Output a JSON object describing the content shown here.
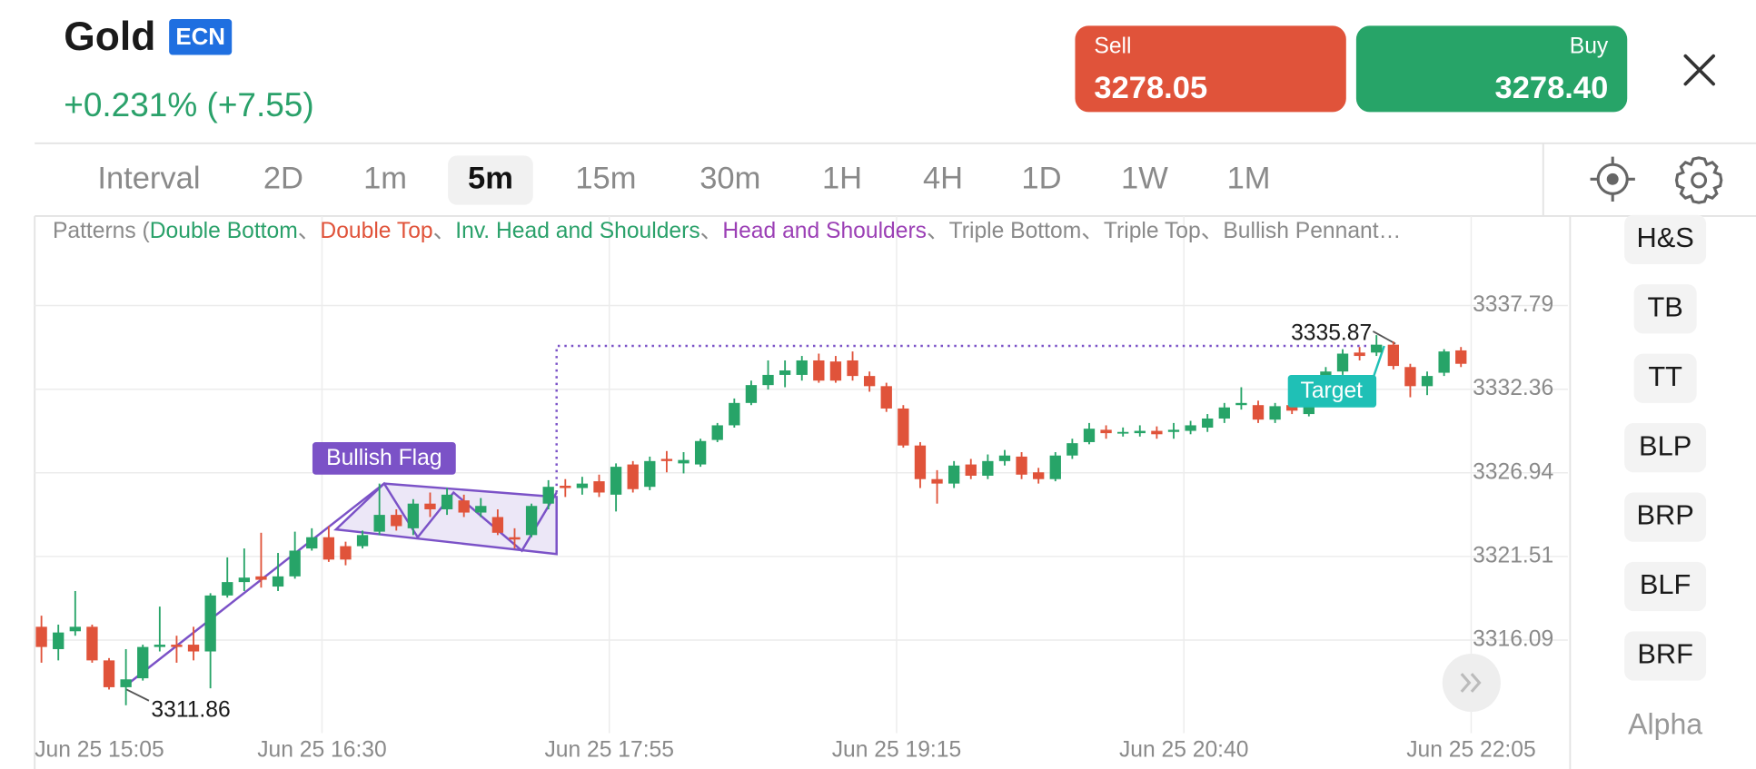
{
  "header": {
    "title": "Gold",
    "badge": "ECN",
    "change": "+0.231% (+7.55)"
  },
  "quote": {
    "sell_label": "Sell",
    "sell_price": "3278.05",
    "buy_label": "Buy",
    "buy_price": "3278.40"
  },
  "tabs": [
    "Interval",
    "2D",
    "1m",
    "5m",
    "15m",
    "30m",
    "1H",
    "4H",
    "1D",
    "1W",
    "1M"
  ],
  "active_tab": 3,
  "patterns": {
    "prefix": "Patterns (",
    "separator": "、",
    "items": [
      {
        "name": "Double Bottom",
        "color": "#2aa16a"
      },
      {
        "name": "Double Top",
        "color": "#e0533a"
      },
      {
        "name": "Inv. Head and Shoulders",
        "color": "#2aa16a"
      },
      {
        "name": "Head and Shoulders",
        "color": "#9b3fb5"
      },
      {
        "name": "Triple Bottom",
        "color": "#8a8a8a"
      },
      {
        "name": "Triple Top",
        "color": "#8a8a8a"
      },
      {
        "name": "Bullish Pennant…",
        "color": "#8a8a8a"
      }
    ]
  },
  "sidebar": {
    "buttons": [
      "H&S",
      "TB",
      "TT",
      "BLP",
      "BRP",
      "BLF",
      "BRF"
    ],
    "footer": "Alpha"
  },
  "chart_data": {
    "type": "candlestick",
    "categories": [
      "Jun 25 15:05",
      null,
      null,
      null,
      null,
      null,
      null,
      null,
      null,
      null,
      null,
      null,
      null,
      null,
      null,
      null,
      null,
      "Jun 25 16:30",
      null,
      null,
      null,
      null,
      null,
      null,
      null,
      null,
      null,
      null,
      null,
      null,
      null,
      null,
      null,
      null,
      "Jun 25 17:55",
      null,
      null,
      null,
      null,
      null,
      null,
      null,
      null,
      null,
      null,
      null,
      null,
      null,
      null,
      null,
      null,
      "Jun 25 19:15",
      null,
      null,
      null,
      null,
      null,
      null,
      null,
      null,
      null,
      null,
      null,
      null,
      null,
      null,
      null,
      null,
      "Jun 25 20:40",
      null,
      null,
      null,
      null,
      null,
      null,
      null,
      null,
      null,
      null,
      null,
      null,
      null,
      null,
      null,
      null,
      "Jun 25 22:05"
    ],
    "open": [
      3316.95,
      3315.5,
      3316.66,
      3316.95,
      3314.77,
      3313.03,
      3313.61,
      3315.64,
      3315.79,
      3315.79,
      3315.35,
      3318.98,
      3319.85,
      3320.22,
      3319.56,
      3320.22,
      3322.03,
      3322.76,
      3322.18,
      3322.18,
      3323.12,
      3324.21,
      3323.34,
      3324.94,
      3324.57,
      3325.15,
      3324.36,
      3324.07,
      3322.76,
      3322.9,
      3324.94,
      3326.1,
      3325.95,
      3326.39,
      3325.52,
      3327.48,
      3326.03,
      3327.84,
      3327.55,
      3327.48,
      3329.07,
      3330.02,
      3331.47,
      3332.63,
      3333.29,
      3333.29,
      3334.23,
      3334.16,
      3334.23,
      3333.22,
      3332.56,
      3331.11,
      3328.71,
      3326.53,
      3326.24,
      3327.48,
      3326.75,
      3327.7,
      3327.99,
      3326.97,
      3326.53,
      3328.06,
      3328.93,
      3329.73,
      3329.51,
      3329.51,
      3329.66,
      3329.59,
      3329.66,
      3329.87,
      3330.46,
      3331.33,
      3331.33,
      3330.39,
      3331.33,
      3330.75,
      3332.56,
      3333.51,
      3334.74,
      3334.74,
      3335.25,
      3333.8,
      3332.56,
      3333.43,
      3334.88,
      null
    ],
    "high": [
      3317.67,
      3317.09,
      3319.27,
      3317.09,
      3314.92,
      3315.5,
      3315.79,
      3318.26,
      3316.37,
      3316.95,
      3319.13,
      3321.45,
      3322.03,
      3323.05,
      3321.74,
      3323.12,
      3323.34,
      3323.48,
      3322.47,
      3323.19,
      3326.24,
      3324.57,
      3325.23,
      3325.66,
      3325.95,
      3325.52,
      3325.3,
      3324.57,
      3323.34,
      3324.94,
      3326.46,
      3326.53,
      3326.68,
      3326.82,
      3327.55,
      3327.7,
      3327.99,
      3328.35,
      3328.28,
      3329.15,
      3330.17,
      3331.76,
      3332.92,
      3334.23,
      3334.23,
      3334.52,
      3334.67,
      3334.52,
      3334.81,
      3333.51,
      3332.78,
      3331.33,
      3328.93,
      3327.11,
      3327.7,
      3327.84,
      3328.13,
      3328.42,
      3328.28,
      3327.26,
      3328.28,
      3329.15,
      3330.17,
      3330.02,
      3329.88,
      3330.02,
      3329.95,
      3330.17,
      3330.31,
      3330.75,
      3331.47,
      3332.49,
      3331.62,
      3331.47,
      3331.62,
      3331.84,
      3333.8,
      3334.96,
      3335.1,
      3335.87,
      3335.46,
      3334.01,
      3333.51,
      3334.96,
      3335.1,
      null
    ],
    "low": [
      3314.62,
      3314.77,
      3316.37,
      3314.62,
      3312.88,
      3311.86,
      3313.46,
      3315.35,
      3314.62,
      3314.77,
      3312.96,
      3318.84,
      3319.27,
      3319.49,
      3319.27,
      3320.07,
      3321.89,
      3321.16,
      3320.94,
      3322.03,
      3322.9,
      3323.19,
      3322.9,
      3324.07,
      3324.21,
      3324.07,
      3324.07,
      3322.9,
      3322.03,
      3322.76,
      3324.57,
      3325.37,
      3325.52,
      3325.37,
      3324.43,
      3325.66,
      3325.81,
      3326.97,
      3326.9,
      3327.33,
      3328.93,
      3329.87,
      3331.33,
      3332.34,
      3332.49,
      3332.92,
      3332.78,
      3332.78,
      3332.92,
      3332.2,
      3330.89,
      3328.57,
      3325.95,
      3324.94,
      3325.95,
      3326.53,
      3326.53,
      3327.41,
      3326.53,
      3326.24,
      3326.39,
      3327.84,
      3328.79,
      3329.15,
      3329.29,
      3329.29,
      3329.15,
      3329.15,
      3329.44,
      3329.59,
      3330.17,
      3331.04,
      3330.17,
      3330.17,
      3330.75,
      3330.6,
      3331.33,
      3333.29,
      3334.23,
      3334.52,
      3333.65,
      3331.84,
      3331.98,
      3333.22,
      3333.8,
      null
    ],
    "close": [
      3315.64,
      3316.58,
      3316.95,
      3314.77,
      3313.03,
      3313.54,
      3315.64,
      3315.79,
      3315.64,
      3315.35,
      3318.98,
      3319.85,
      3320.14,
      3320.0,
      3320.22,
      3321.89,
      3322.76,
      3321.31,
      3321.31,
      3322.9,
      3324.21,
      3323.48,
      3324.94,
      3324.57,
      3325.52,
      3324.36,
      3324.79,
      3323.05,
      3322.61,
      3324.79,
      3326.03,
      3325.95,
      3326.24,
      3325.66,
      3327.33,
      3325.88,
      3327.7,
      3327.7,
      3327.77,
      3329.0,
      3330.02,
      3331.47,
      3332.63,
      3333.29,
      3333.58,
      3334.23,
      3332.92,
      3332.92,
      3333.22,
      3332.56,
      3331.11,
      3328.71,
      3326.53,
      3326.24,
      3327.41,
      3326.75,
      3327.7,
      3328.06,
      3326.82,
      3326.53,
      3328.06,
      3328.86,
      3329.8,
      3329.51,
      3329.59,
      3329.66,
      3329.44,
      3329.73,
      3330.02,
      3330.46,
      3331.18,
      3331.47,
      3330.39,
      3331.26,
      3330.97,
      3331.47,
      3333.51,
      3334.67,
      3334.52,
      3335.25,
      3333.87,
      3332.56,
      3333.22,
      3334.81,
      3334.01,
      null
    ],
    "up_color": "#27a468",
    "down_color": "#e0533a",
    "ylim": [
      3310.05,
      3343.45
    ],
    "yticks": [
      3316.09,
      3321.51,
      3326.94,
      3332.36,
      3337.79
    ],
    "grid": true,
    "annotations": {
      "pattern": "Bullish Flag",
      "target": "Target",
      "low": 3311.86,
      "high": 3335.87
    }
  }
}
